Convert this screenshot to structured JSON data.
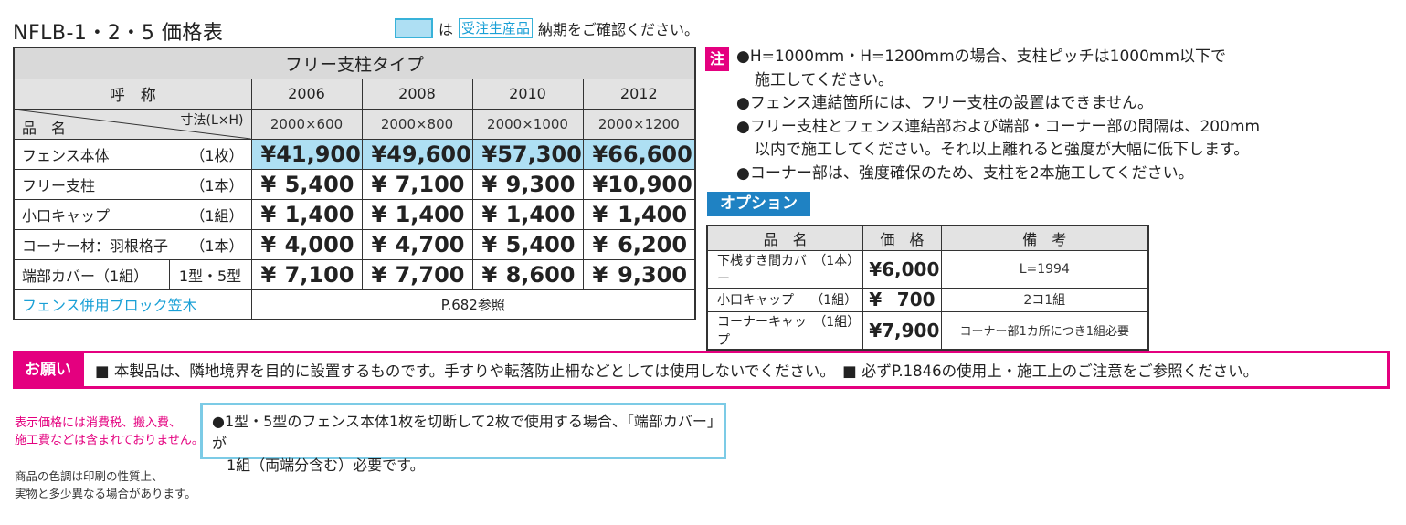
{
  "title": "NFLB-1・2・5 価格表",
  "legend": {
    "prefix": "は",
    "tag": "受注生産品",
    "suffix": "納期をご確認ください。"
  },
  "main_table": {
    "header": "フリー支柱タイプ",
    "label_col": "呼　称",
    "item_label": "品　名",
    "size_label": "寸法(L×H)",
    "years": [
      "2006",
      "2008",
      "2010",
      "2012"
    ],
    "sizes": [
      "2000×600",
      "2000×800",
      "2000×1000",
      "2000×1200"
    ],
    "currency": "¥",
    "rows": [
      {
        "name": "フェンス本体",
        "unit": "（1枚）",
        "prices": [
          "41,900",
          "49,600",
          "57,300",
          "66,600"
        ]
      },
      {
        "name": "フリー支柱",
        "unit": "（1本）",
        "prices": [
          "5,400",
          "7,100",
          "9,300",
          "10,900"
        ]
      },
      {
        "name": "小口キャップ",
        "unit": "（1組）",
        "prices": [
          "1,400",
          "1,400",
          "1,400",
          "1,400"
        ]
      },
      {
        "name": "コーナー材：羽根格子",
        "unit": "（1本）",
        "prices": [
          "4,000",
          "4,700",
          "5,400",
          "6,200"
        ]
      },
      {
        "name": "端部カバー（1組）",
        "unit": "1型・5型",
        "prices": [
          "7,100",
          "7,700",
          "8,600",
          "9,300"
        ]
      }
    ],
    "link_row": {
      "name": "フェンス併用ブロック笠木",
      "ref": "P.682参照"
    }
  },
  "notes": {
    "tag": "注",
    "lines": [
      "●H=1000mm・H=1200mmの場合、支柱ピッチは1000mm以下で",
      "施工してください。",
      "●フェンス連結箇所には、フリー支柱の設置はできません。",
      "●フリー支柱とフェンス連結部および端部・コーナー部の間隔は、200mm",
      "以内で施工してください。それ以上離れると強度が大幅に低下します。",
      "●コーナー部は、強度確保のため、支柱を2本施工してください。"
    ]
  },
  "option": {
    "tag": "オプション",
    "headers": [
      "品　名",
      "価　格",
      "備　考"
    ],
    "currency": "¥",
    "rows": [
      {
        "name": "下桟すき間カバー",
        "unit": "（1本）",
        "price": "6,000",
        "remark": "L=1994"
      },
      {
        "name": "小口キャップ",
        "unit": "（1組）",
        "price": "700",
        "remark": "2コ1組"
      },
      {
        "name": "コーナーキャップ",
        "unit": "（1組）",
        "price": "7,900",
        "remark": "コーナー部1カ所につき1組必要"
      }
    ]
  },
  "request": {
    "label": "お願い",
    "text": "■ 本製品は、隣地境界を目的に設置するものです。手すりや転落防止柵などとしては使用しないでください。　■ 必ずP.1846の使用上・施工上のご注意をご参照ください。"
  },
  "footnote_red": [
    "表示価格には消費税、搬入費、",
    "施工費などは含まれておりません。"
  ],
  "footnote": [
    "商品の色調は印刷の性質上、",
    "実物と多少異なる場合があります。"
  ],
  "box": [
    "●1型・5型のフェンス本体1枚を切断して2枚で使用する場合、「端部カバー」が",
    "1組（両端分含む）必要です。"
  ],
  "colors": {
    "highlight": "#aedff3",
    "accent_pink": "#e4007f",
    "accent_blue": "#1f82c3",
    "link": "#1aa0d6"
  }
}
